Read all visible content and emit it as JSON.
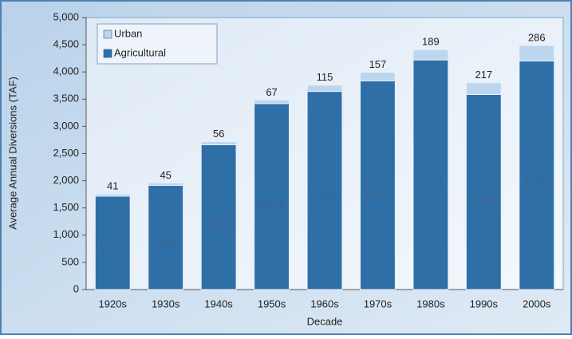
{
  "chart_data": {
    "type": "stacked_bar",
    "x_label": "Decade",
    "y_label": "Average Annual Diversions (TAF)",
    "categories": [
      "1920s",
      "1930s",
      "1940s",
      "1950s",
      "1960s",
      "1970s",
      "1980s",
      "1990s",
      "2000s"
    ],
    "series": [
      {
        "name": "Urban",
        "color": "#bcd6ee",
        "values": [
          41,
          45,
          56,
          67,
          115,
          157,
          189,
          217,
          286
        ]
      },
      {
        "name": "Agricultural",
        "color": "#2f6fa7",
        "values": [
          1717,
          1915,
          2661,
          3418,
          3642,
          3837,
          4221,
          3585,
          4201
        ],
        "value_labels": [
          "1,717",
          "1,915",
          "2,661",
          "3,418",
          "3,642",
          "3,837",
          "4,221",
          "3,585",
          "4,201"
        ]
      }
    ],
    "ylim": [
      0,
      5000
    ],
    "yticks": [
      0,
      500,
      {
        "value": 1000,
        "label": "1,000"
      },
      {
        "value": 1500,
        "label": "1,500"
      },
      {
        "value": 2000,
        "label": "2,000"
      },
      {
        "value": 2500,
        "label": "2,500"
      },
      {
        "value": 3000,
        "label": "3,000"
      },
      {
        "value": 3500,
        "label": "3,500"
      },
      {
        "value": 4000,
        "label": "4,000"
      },
      {
        "value": 4500,
        "label": "4,500"
      },
      {
        "value": 5000,
        "label": "5,000"
      }
    ],
    "legend": "upper left"
  }
}
